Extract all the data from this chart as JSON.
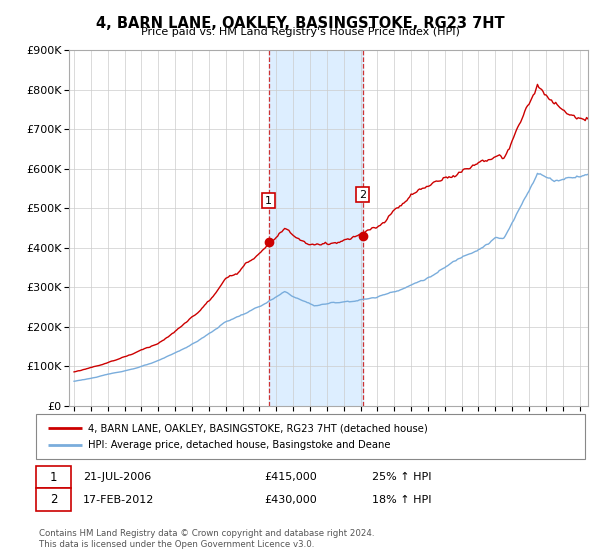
{
  "title": "4, BARN LANE, OAKLEY, BASINGSTOKE, RG23 7HT",
  "subtitle": "Price paid vs. HM Land Registry's House Price Index (HPI)",
  "ylim": [
    0,
    900000
  ],
  "xlim_start": 1994.7,
  "xlim_end": 2025.5,
  "xticks": [
    1995,
    1996,
    1997,
    1998,
    1999,
    2000,
    2001,
    2002,
    2003,
    2004,
    2005,
    2006,
    2007,
    2008,
    2009,
    2010,
    2011,
    2012,
    2013,
    2014,
    2015,
    2016,
    2017,
    2018,
    2019,
    2020,
    2021,
    2022,
    2023,
    2024,
    2025
  ],
  "sale1_x": 2006.55,
  "sale1_y": 415000,
  "sale1_label": "1",
  "sale1_date": "21-JUL-2006",
  "sale1_price": "£415,000",
  "sale1_hpi": "25% ↑ HPI",
  "sale2_x": 2012.12,
  "sale2_y": 430000,
  "sale2_label": "2",
  "sale2_date": "17-FEB-2012",
  "sale2_price": "£430,000",
  "sale2_hpi": "18% ↑ HPI",
  "shade_x1": 2006.55,
  "shade_x2": 2012.12,
  "line1_color": "#cc0000",
  "line2_color": "#7aaddc",
  "shade_color": "#ddeeff",
  "grid_color": "#cccccc",
  "background_color": "#ffffff",
  "legend_line1": "4, BARN LANE, OAKLEY, BASINGSTOKE, RG23 7HT (detached house)",
  "legend_line2": "HPI: Average price, detached house, Basingstoke and Deane",
  "footnote": "Contains HM Land Registry data © Crown copyright and database right 2024.\nThis data is licensed under the Open Government Licence v3.0."
}
